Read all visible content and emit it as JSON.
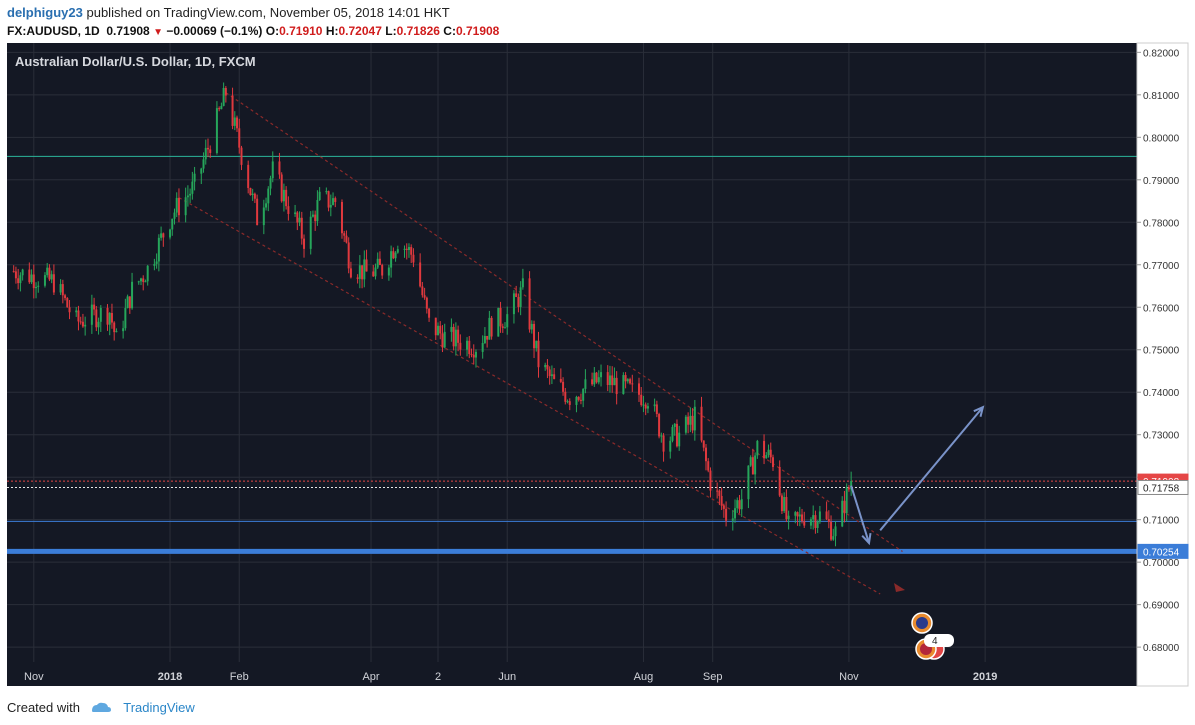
{
  "header": {
    "author": "delphiguy23",
    "published_text": "published on TradingView.com, November 05, 2018 14:01 HKT",
    "symbol": "FX:AUDUSD, 1D",
    "last_price": "0.71908",
    "change_arrow": "▼",
    "change": "−0.00069 (−0.1%)",
    "open_label": "O:",
    "open": "0.71910",
    "high_label": "H:",
    "high": "0.72047",
    "low_label": "L:",
    "low": "0.71826",
    "close_label": "C:",
    "close": "0.71908"
  },
  "footer": {
    "created_with": "Created with",
    "brand": "TradingView"
  },
  "colors": {
    "background": "#141824",
    "grid": "#2a2e39",
    "up": "#26a65b",
    "down": "#e0393e",
    "support": "#3b7dd8",
    "level_0_7958": "#2bb59a",
    "price_red": "#e54646",
    "channel": "#8a2a2a",
    "arrow": "#7a93c9"
  },
  "events": {
    "au_flag_icon": "australia-flag-icon",
    "us_flag_icon": "us-flag-icon",
    "event_count": "4"
  },
  "chart_data": {
    "type": "candlestick",
    "title": "Australian Dollar/U.S. Dollar, 1D, FXCM",
    "ylim": [
      0.6765,
      0.8222
    ],
    "y_ticks": [
      "0.82000",
      "0.81000",
      "0.80000",
      "0.79000",
      "0.78000",
      "0.77000",
      "0.76000",
      "0.75000",
      "0.74000",
      "0.73000",
      "0.72000",
      "0.71000",
      "0.70000",
      "0.69000",
      "0.68000"
    ],
    "x_labels": [
      "Nov",
      "2018",
      "Feb",
      "Apr",
      "2",
      "Jun",
      "Aug",
      "Sep",
      "Nov",
      "2019"
    ],
    "grid": true,
    "price_labels": [
      {
        "value": 0.71908,
        "label": "0.71908",
        "style": "last"
      },
      {
        "value": 0.71758,
        "label": "0.71758",
        "style": "crosshair"
      },
      {
        "value": 0.70254,
        "label": "0.70254",
        "style": "support"
      }
    ],
    "horizontal_levels": [
      {
        "value": 0.7955,
        "role": "resistance"
      },
      {
        "value": 0.7096,
        "role": "level"
      },
      {
        "value": 0.70254,
        "role": "support"
      }
    ],
    "channel_lines": [
      {
        "from": [
          "2018-01-26",
          0.8105
        ],
        "to": [
          "2018-11-25",
          0.7025
        ]
      },
      {
        "from": [
          "2018-01-05",
          0.7858
        ],
        "to": [
          "2018-11-15",
          0.6925
        ]
      }
    ],
    "projection_arrows": [
      {
        "from": [
          "2018-11-02",
          0.718
        ],
        "to": [
          "2018-11-10",
          0.7045
        ]
      },
      {
        "from": [
          "2018-11-15",
          0.7075
        ],
        "to": [
          "2018-12-31",
          0.7365
        ]
      }
    ],
    "closes": [
      {
        "date": "2017-10-23",
        "close": 0.7685
      },
      {
        "date": "2017-11-01",
        "close": 0.7672
      },
      {
        "date": "2017-11-10",
        "close": 0.766
      },
      {
        "date": "2017-11-20",
        "close": 0.7565
      },
      {
        "date": "2017-11-28",
        "close": 0.758
      },
      {
        "date": "2017-12-05",
        "close": 0.759
      },
      {
        "date": "2017-12-08",
        "close": 0.752
      },
      {
        "date": "2017-12-15",
        "close": 0.764
      },
      {
        "date": "2017-12-22",
        "close": 0.769
      },
      {
        "date": "2018-01-02",
        "close": 0.782
      },
      {
        "date": "2018-01-12",
        "close": 0.7885
      },
      {
        "date": "2018-01-19",
        "close": 0.799
      },
      {
        "date": "2018-01-26",
        "close": 0.8105
      },
      {
        "date": "2018-02-02",
        "close": 0.796
      },
      {
        "date": "2018-02-09",
        "close": 0.781
      },
      {
        "date": "2018-02-16",
        "close": 0.792
      },
      {
        "date": "2018-02-23",
        "close": 0.784
      },
      {
        "date": "2018-03-02",
        "close": 0.776
      },
      {
        "date": "2018-03-09",
        "close": 0.785
      },
      {
        "date": "2018-03-16",
        "close": 0.785
      },
      {
        "date": "2018-03-23",
        "close": 0.77
      },
      {
        "date": "2018-03-30",
        "close": 0.768
      },
      {
        "date": "2018-04-06",
        "close": 0.769
      },
      {
        "date": "2018-04-13",
        "close": 0.776
      },
      {
        "date": "2018-04-20",
        "close": 0.772
      },
      {
        "date": "2018-04-27",
        "close": 0.756
      },
      {
        "date": "2018-05-04",
        "close": 0.753
      },
      {
        "date": "2018-05-11",
        "close": 0.752
      },
      {
        "date": "2018-05-18",
        "close": 0.751
      },
      {
        "date": "2018-05-25",
        "close": 0.756
      },
      {
        "date": "2018-06-01",
        "close": 0.758
      },
      {
        "date": "2018-06-08",
        "close": 0.764
      },
      {
        "date": "2018-06-15",
        "close": 0.747
      },
      {
        "date": "2018-06-22",
        "close": 0.742
      },
      {
        "date": "2018-06-29",
        "close": 0.739
      },
      {
        "date": "2018-07-06",
        "close": 0.741
      },
      {
        "date": "2018-07-13",
        "close": 0.743
      },
      {
        "date": "2018-07-20",
        "close": 0.742
      },
      {
        "date": "2018-07-27",
        "close": 0.74
      },
      {
        "date": "2018-08-03",
        "close": 0.739
      },
      {
        "date": "2018-08-10",
        "close": 0.729
      },
      {
        "date": "2018-08-17",
        "close": 0.73
      },
      {
        "date": "2018-08-24",
        "close": 0.734
      },
      {
        "date": "2018-08-31",
        "close": 0.719
      },
      {
        "date": "2018-09-07",
        "close": 0.711
      },
      {
        "date": "2018-09-14",
        "close": 0.715
      },
      {
        "date": "2018-09-21",
        "close": 0.727
      },
      {
        "date": "2018-09-28",
        "close": 0.724
      },
      {
        "date": "2018-10-05",
        "close": 0.708
      },
      {
        "date": "2018-10-12",
        "close": 0.711
      },
      {
        "date": "2018-10-19",
        "close": 0.711
      },
      {
        "date": "2018-10-26",
        "close": 0.707
      },
      {
        "date": "2018-11-02",
        "close": 0.7191
      }
    ]
  }
}
